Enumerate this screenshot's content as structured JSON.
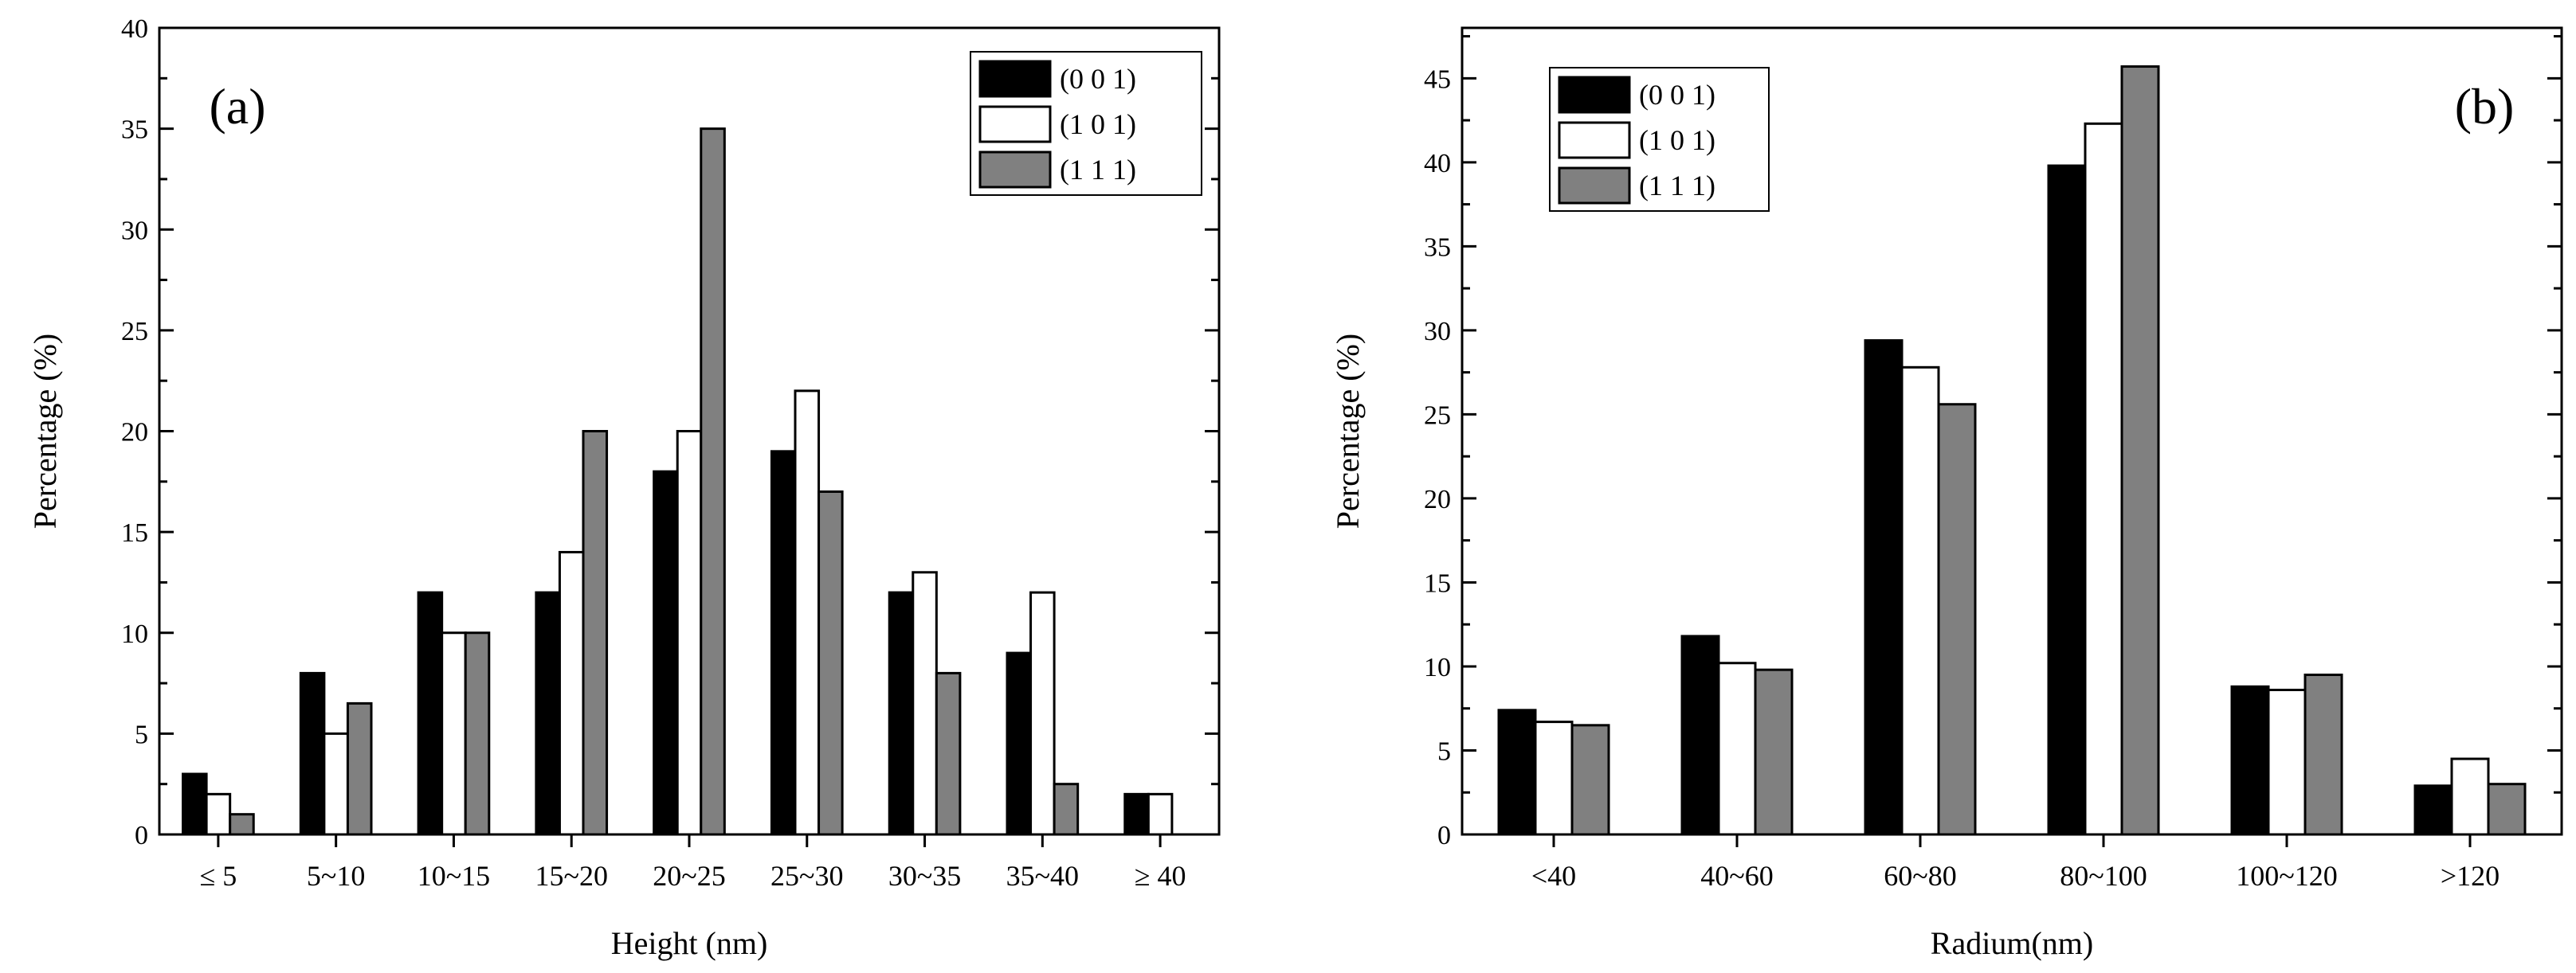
{
  "chart_data": [
    {
      "type": "bar",
      "panel_label": "(a)",
      "xlabel": "Height (nm)",
      "ylabel": "Percentage (%)",
      "ylim": [
        0,
        40
      ],
      "yticks": [
        0,
        5,
        10,
        15,
        20,
        25,
        30,
        35,
        40
      ],
      "categories": [
        "≤ 5",
        "5~10",
        "10~15",
        "15~20",
        "20~25",
        "25~30",
        "30~35",
        "35~40",
        "≥ 40"
      ],
      "legend_position": "top-right",
      "series": [
        {
          "name": "(0 0 1)",
          "color": "#000000",
          "values": [
            3,
            8,
            12,
            12,
            18,
            19,
            12,
            9,
            2
          ]
        },
        {
          "name": "(1 0 1)",
          "color": "#ffffff",
          "values": [
            2,
            5,
            10,
            14,
            20,
            22,
            13,
            12,
            2
          ]
        },
        {
          "name": "(1 1 1)",
          "color": "#808080",
          "values": [
            1,
            6.5,
            10,
            20,
            35,
            17,
            8,
            2.5,
            0
          ]
        }
      ]
    },
    {
      "type": "bar",
      "panel_label": "(b)",
      "xlabel": "Radium(nm)",
      "ylabel": "Percentage (%)",
      "ylim": [
        0,
        48
      ],
      "yticks": [
        0,
        5,
        10,
        15,
        20,
        25,
        30,
        35,
        40,
        45
      ],
      "categories": [
        "<40",
        "40~60",
        "60~80",
        "80~100",
        "100~120",
        ">120"
      ],
      "legend_position": "top-left",
      "series": [
        {
          "name": "(0 0 1)",
          "color": "#000000",
          "values": [
            7.4,
            11.8,
            29.4,
            39.8,
            8.8,
            2.9
          ]
        },
        {
          "name": "(1 0 1)",
          "color": "#ffffff",
          "values": [
            6.7,
            10.2,
            27.8,
            42.3,
            8.6,
            4.5
          ]
        },
        {
          "name": "(1 1 1)",
          "color": "#808080",
          "values": [
            6.5,
            9.8,
            25.6,
            45.7,
            9.5,
            3.0
          ]
        }
      ]
    }
  ]
}
